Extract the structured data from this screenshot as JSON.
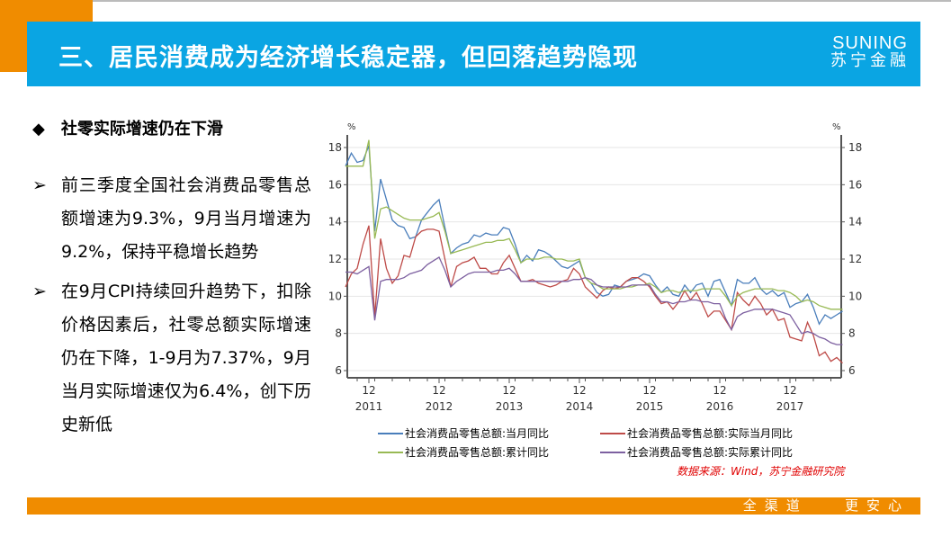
{
  "header": {
    "title": "三、居民消费成为经济增长稳定器，但回落趋势隐现",
    "logo_en": "SUNING",
    "logo_cn": "苏宁金融",
    "accent": "#0AA5E3",
    "brand_orange": "#F08C00"
  },
  "section": {
    "bullet": "◆",
    "title": "社零实际增速仍在下滑"
  },
  "points": [
    {
      "marker": "➢",
      "text": "前三季度全国社会消费品零售总额增速为9.3%，9月当月增速为9.2%，保持平稳增长趋势"
    },
    {
      "marker": "➢",
      "text": "在9月CPI持续回升趋势下，扣除价格因素后，社零总额实际增速仍在下降，1-9月为7.37%，9月当月实际增速仅为6.4%，创下历史新低"
    }
  ],
  "source": "数据来源：Wind，苏宁金融研究院",
  "footer": {
    "slogan": "全渠道   更安心"
  },
  "chart_data": {
    "type": "line",
    "x_start": "2011-08",
    "x_frequency": "monthly",
    "ylim": [
      6,
      18.8
    ],
    "yticks": [
      6,
      8,
      10,
      12,
      14,
      16,
      18
    ],
    "ylabel_left": "%",
    "ylabel_right": "%",
    "xticks": [
      {
        "month": "12",
        "year": "2011"
      },
      {
        "month": "12",
        "year": "2012"
      },
      {
        "month": "12",
        "year": "2013"
      },
      {
        "month": "12",
        "year": "2014"
      },
      {
        "month": "12",
        "year": "2015"
      },
      {
        "month": "12",
        "year": "2016"
      },
      {
        "month": "12",
        "year": "2017"
      }
    ],
    "grid": true,
    "legend": "bottom",
    "series": [
      {
        "name": "社会消费品零售总额:当月同比",
        "color": "#4A7EBB",
        "values": [
          17.0,
          17.7,
          17.2,
          17.3,
          18.1,
          13.5,
          16.3,
          15.2,
          14.1,
          13.8,
          13.7,
          13.1,
          13.2,
          14.1,
          14.5,
          14.9,
          15.2,
          13.7,
          12.3,
          12.6,
          12.8,
          12.9,
          13.3,
          13.2,
          13.4,
          13.3,
          13.3,
          13.7,
          13.6,
          12.8,
          11.8,
          12.2,
          11.9,
          12.5,
          12.4,
          12.2,
          11.9,
          11.6,
          11.5,
          11.7,
          11.9,
          11.0,
          10.7,
          10.2,
          10.0,
          10.1,
          10.6,
          10.5,
          10.8,
          10.9,
          11.0,
          11.2,
          11.1,
          10.6,
          10.2,
          10.5,
          10.1,
          10.0,
          10.6,
          10.2,
          10.6,
          10.7,
          10.0,
          10.8,
          10.9,
          10.2,
          9.5,
          10.9,
          10.7,
          10.7,
          11.0,
          10.4,
          10.1,
          10.3,
          10.0,
          10.2,
          9.4,
          9.6,
          9.7,
          10.1,
          9.4,
          8.5,
          9.0,
          8.8,
          9.0,
          9.2
        ]
      },
      {
        "name": "社会消费品零售总额:实际当月同比",
        "color": "#BE4B48",
        "values": [
          10.5,
          11.2,
          11.5,
          12.8,
          13.8,
          8.9,
          13.1,
          11.5,
          10.7,
          11.1,
          12.2,
          12.1,
          13.2,
          13.5,
          13.6,
          13.6,
          13.5,
          12.0,
          10.5,
          11.6,
          11.8,
          11.9,
          12.1,
          11.5,
          11.5,
          11.2,
          11.2,
          11.8,
          12.2,
          11.5,
          10.8,
          10.8,
          10.9,
          10.7,
          10.6,
          10.5,
          10.6,
          10.8,
          10.9,
          11.5,
          11.2,
          10.5,
          10.2,
          9.9,
          10.3,
          10.5,
          10.4,
          10.5,
          10.8,
          11.0,
          11.0,
          10.8,
          10.5,
          10.0,
          9.6,
          9.7,
          9.3,
          9.7,
          10.3,
          9.8,
          10.2,
          9.6,
          8.9,
          9.2,
          9.2,
          8.7,
          8.2,
          10.2,
          9.8,
          9.5,
          10.0,
          9.6,
          9.0,
          9.3,
          8.7,
          8.8,
          7.8,
          7.7,
          7.6,
          8.6,
          7.9,
          6.8,
          7.0,
          6.5,
          6.7,
          6.4
        ]
      },
      {
        "name": "社会消费品零售总额:累计同比",
        "color": "#98B954",
        "values": [
          17.0,
          17.0,
          17.0,
          17.0,
          18.4,
          13.1,
          14.7,
          14.8,
          14.6,
          14.4,
          14.2,
          14.1,
          14.1,
          14.1,
          14.2,
          14.3,
          14.5,
          13.5,
          12.3,
          12.4,
          12.5,
          12.6,
          12.7,
          12.8,
          12.9,
          12.9,
          13.0,
          13.0,
          13.1,
          12.5,
          11.8,
          12.0,
          12.0,
          12.0,
          12.1,
          12.1,
          12.0,
          12.0,
          11.9,
          11.9,
          12.0,
          11.0,
          10.7,
          10.6,
          10.4,
          10.4,
          10.4,
          10.4,
          10.5,
          10.5,
          10.6,
          10.6,
          10.7,
          10.5,
          10.2,
          10.3,
          10.3,
          10.2,
          10.3,
          10.3,
          10.3,
          10.4,
          10.4,
          10.4,
          10.4,
          10.0,
          9.5,
          10.0,
          10.2,
          10.3,
          10.4,
          10.4,
          10.4,
          10.4,
          10.3,
          10.3,
          10.2,
          10.0,
          9.7,
          9.8,
          9.7,
          9.5,
          9.4,
          9.3,
          9.3,
          9.3
        ]
      },
      {
        "name": "社会消费品零售总额:实际累计同比",
        "color": "#7D60A0",
        "values": [
          11.3,
          11.3,
          11.2,
          11.4,
          11.6,
          8.7,
          10.8,
          10.9,
          10.9,
          10.9,
          11.0,
          11.2,
          11.3,
          11.4,
          11.7,
          11.9,
          12.1,
          11.4,
          10.5,
          10.8,
          11.0,
          11.2,
          11.3,
          11.3,
          11.3,
          11.3,
          11.4,
          11.4,
          11.5,
          11.2,
          10.8,
          10.8,
          10.8,
          10.8,
          10.8,
          10.8,
          10.8,
          10.8,
          10.8,
          10.9,
          10.9,
          11.0,
          10.9,
          10.6,
          10.5,
          10.5,
          10.5,
          10.5,
          10.5,
          10.6,
          10.6,
          10.6,
          10.6,
          10.1,
          9.7,
          9.7,
          9.6,
          9.7,
          9.7,
          9.8,
          9.8,
          9.7,
          9.7,
          9.6,
          9.6,
          8.8,
          8.2,
          8.9,
          9.1,
          9.2,
          9.3,
          9.3,
          9.3,
          9.3,
          9.2,
          9.1,
          9.0,
          8.5,
          8.0,
          8.1,
          8.0,
          7.8,
          7.7,
          7.5,
          7.4,
          7.4
        ]
      }
    ]
  }
}
